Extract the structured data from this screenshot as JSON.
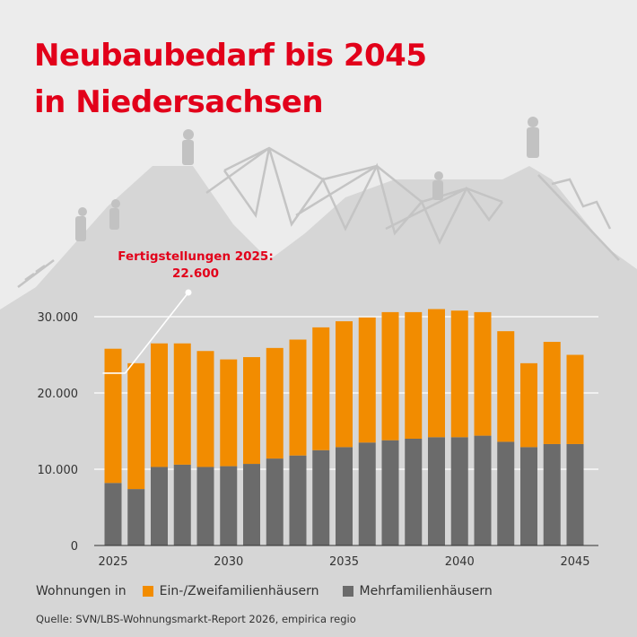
{
  "title_line1": "Neubaubedarf bis 2045",
  "title_line2": "in Niedersachsen",
  "callout_line1": "Fertigstellungen 2025:",
  "callout_line2": "22.600",
  "legend_label": "Wohnungen in",
  "source": "Quelle: SVN/LBS-Wohnungsmarkt-Report 2026, empirica regio",
  "colors": {
    "background": "#ececec",
    "silhouette": "#d6d6d6",
    "figure": "#c2c2c2",
    "accent": "#e2001a",
    "orange": "#f28c00",
    "gray": "#6b6b6b",
    "axis": "#333333"
  },
  "chart_data": {
    "type": "bar",
    "stacked": true,
    "categories": [
      2025,
      2026,
      2027,
      2028,
      2029,
      2030,
      2031,
      2032,
      2033,
      2034,
      2035,
      2036,
      2037,
      2038,
      2039,
      2040,
      2041,
      2042,
      2043,
      2044,
      2045
    ],
    "x_tick_labels": [
      "2025",
      "2030",
      "2035",
      "2040",
      "2045"
    ],
    "y_tick_values": [
      0,
      10000,
      20000,
      30000
    ],
    "y_tick_labels": [
      "0",
      "10.000",
      "20.000",
      "30.000"
    ],
    "ylim": [
      0,
      30000
    ],
    "grid": true,
    "legend_position": "bottom",
    "series": [
      {
        "name": "Mehrfamilienhäusern",
        "color": "#6b6b6b",
        "values": [
          8200,
          7400,
          10300,
          10600,
          10300,
          10400,
          10700,
          11400,
          11800,
          12500,
          12900,
          13500,
          13800,
          14000,
          14200,
          14200,
          14400,
          13600,
          12900,
          13300,
          13300
        ]
      },
      {
        "name": "Ein-/Zweifamilienhäusern",
        "color": "#f28c00",
        "values": [
          17600,
          16500,
          16200,
          15900,
          15200,
          14000,
          14000,
          14500,
          15200,
          16100,
          16500,
          16400,
          16800,
          16600,
          16800,
          16600,
          16200,
          14500,
          11000,
          13400,
          11700
        ]
      }
    ],
    "annotation": {
      "label": "Fertigstellungen 2025: 22.600",
      "value": 22600,
      "category": 2025
    }
  }
}
